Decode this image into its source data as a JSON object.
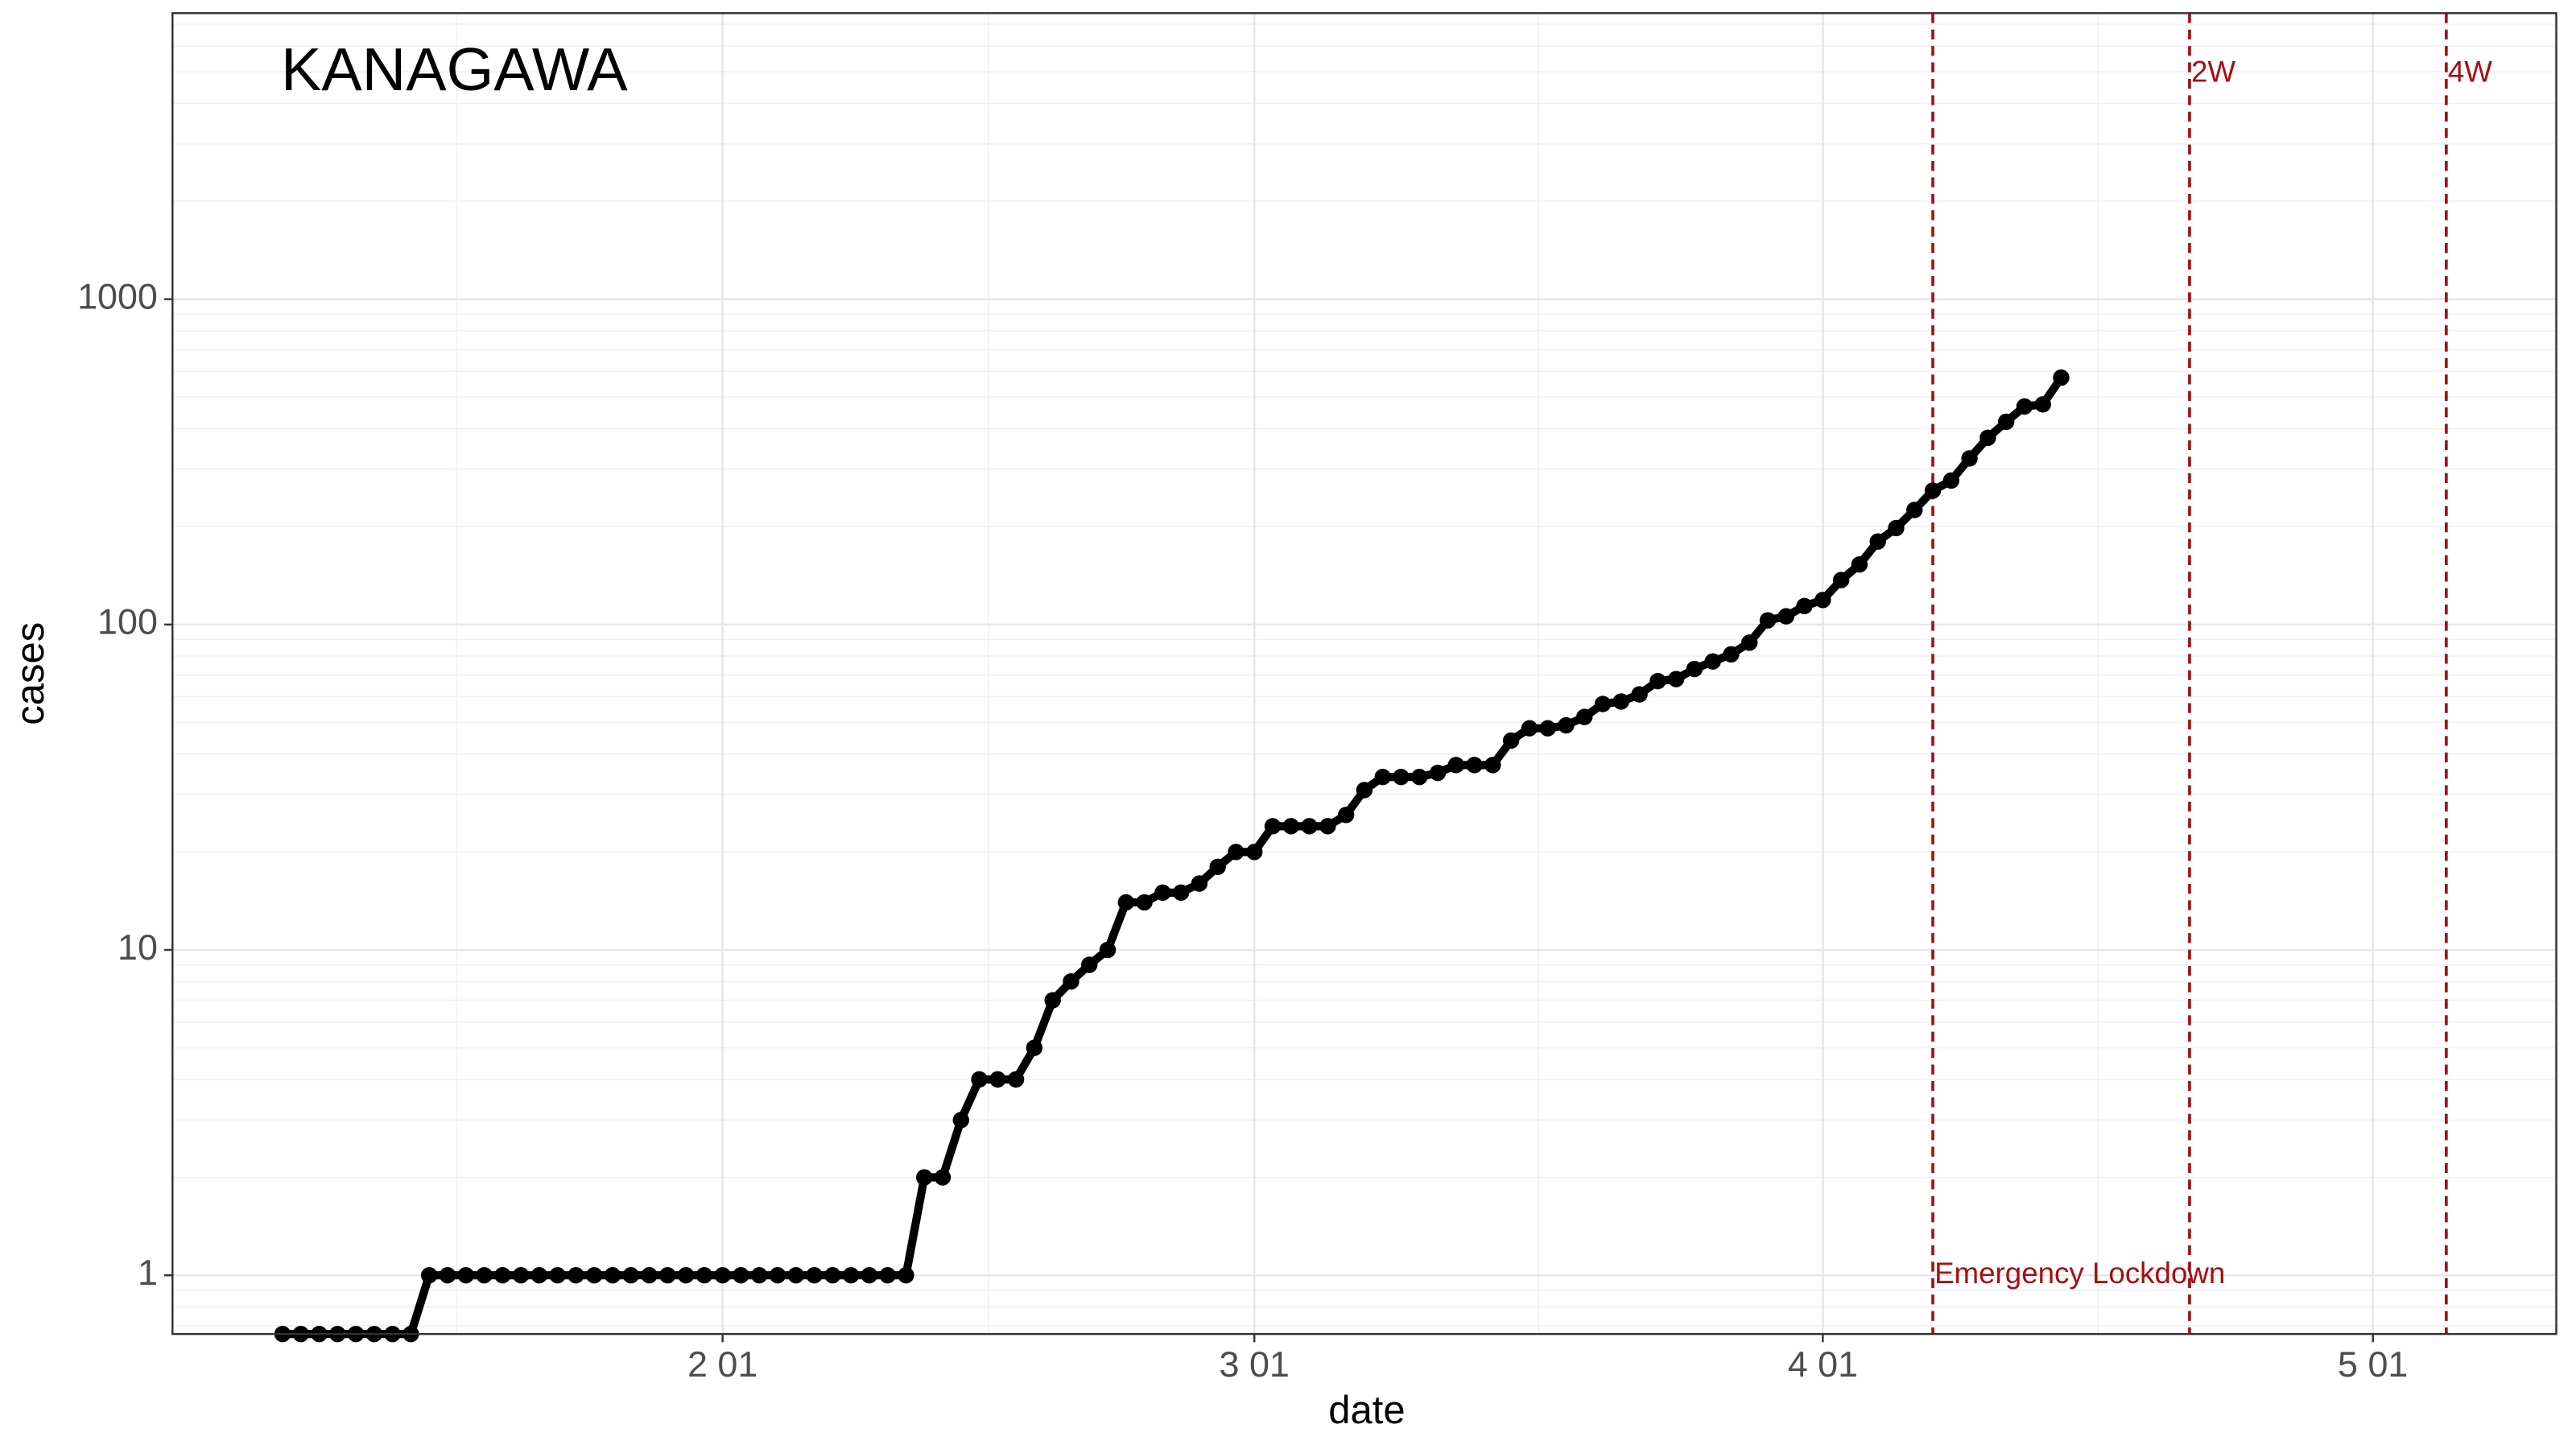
{
  "chart_data": {
    "type": "line",
    "title": "KANAGAWA",
    "x_label": "date",
    "y_label": "cases",
    "x": [
      "01-08",
      "01-09",
      "01-10",
      "01-11",
      "01-12",
      "01-13",
      "01-14",
      "01-15",
      "01-16",
      "01-17",
      "01-18",
      "01-19",
      "01-20",
      "01-21",
      "01-22",
      "01-23",
      "01-24",
      "01-25",
      "01-26",
      "01-27",
      "01-28",
      "01-29",
      "01-30",
      "01-31",
      "02-01",
      "02-02",
      "02-03",
      "02-04",
      "02-05",
      "02-06",
      "02-07",
      "02-08",
      "02-09",
      "02-10",
      "02-11",
      "02-12",
      "02-13",
      "02-14",
      "02-15",
      "02-16",
      "02-17",
      "02-18",
      "02-19",
      "02-20",
      "02-21",
      "02-22",
      "02-23",
      "02-24",
      "02-25",
      "02-26",
      "02-27",
      "02-28",
      "02-29",
      "03-01",
      "03-02",
      "03-03",
      "03-04",
      "03-05",
      "03-06",
      "03-07",
      "03-08",
      "03-09",
      "03-10",
      "03-11",
      "03-12",
      "03-13",
      "03-14",
      "03-15",
      "03-16",
      "03-17",
      "03-18",
      "03-19",
      "03-20",
      "03-21",
      "03-22",
      "03-23",
      "03-24",
      "03-25",
      "03-26",
      "03-27",
      "03-28",
      "03-29",
      "03-30",
      "03-31",
      "04-01",
      "04-02",
      "04-03",
      "04-04",
      "04-05",
      "04-06",
      "04-07",
      "04-08",
      "04-09",
      "04-10",
      "04-11",
      "04-12",
      "04-13",
      "04-14"
    ],
    "values": [
      0.66,
      0.66,
      0.66,
      0.66,
      0.66,
      0.66,
      0.66,
      0.66,
      1,
      1,
      1,
      1,
      1,
      1,
      1,
      1,
      1,
      1,
      1,
      1,
      1,
      1,
      1,
      1,
      1,
      1,
      1,
      1,
      1,
      1,
      1,
      1,
      1,
      1,
      1,
      2,
      2,
      3,
      4,
      4,
      4,
      5,
      7,
      8,
      9,
      10,
      14,
      14,
      15,
      15,
      16,
      18,
      20,
      20,
      24,
      24,
      24,
      24,
      26,
      31,
      34,
      34,
      34,
      35,
      37,
      37,
      37,
      44,
      48,
      48,
      49,
      52,
      57,
      58,
      61,
      67,
      68,
      73,
      77,
      81,
      88,
      103,
      106,
      114,
      119,
      137,
      153,
      180,
      198,
      225,
      258,
      277,
      324,
      375,
      420,
      468,
      475,
      574
    ],
    "color": "#000000",
    "log_y": true,
    "ylim": [
      0.66,
      7570
    ],
    "yticks": [
      1,
      10,
      100,
      1000
    ],
    "xlim": [
      "01-02",
      "05-11"
    ],
    "xticks": [
      {
        "value": "02-01",
        "label": "2 01"
      },
      {
        "value": "03-01",
        "label": "3 01"
      },
      {
        "value": "04-01",
        "label": "4 01"
      },
      {
        "value": "05-01",
        "label": "5 01"
      }
    ],
    "grid": true,
    "vlines": [
      {
        "x": "04-07",
        "label": "Emergency Lockdown"
      },
      {
        "x": "04-21",
        "label": "2W"
      },
      {
        "x": "05-05",
        "label": "4W"
      }
    ],
    "vline_color": "#a50f15"
  }
}
